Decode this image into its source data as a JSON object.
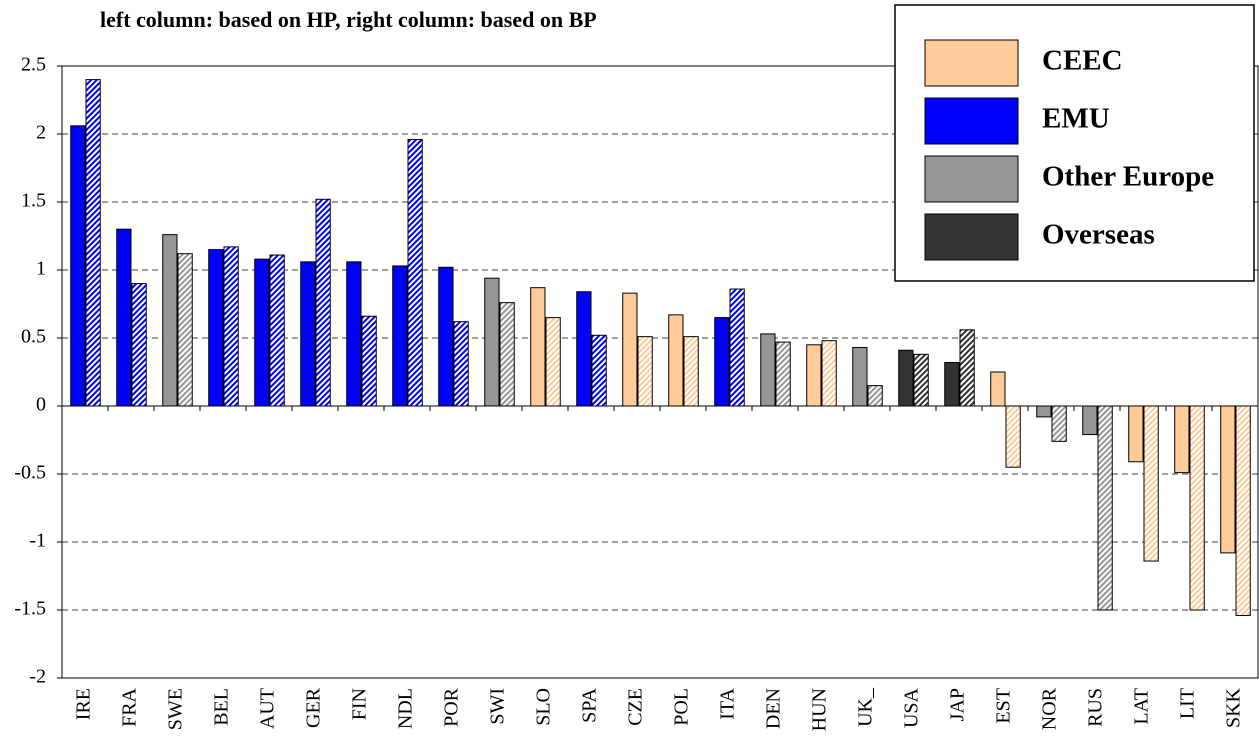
{
  "chart_data": {
    "type": "bar",
    "title": "left column: based on HP, right column: based on BP",
    "categories": [
      "IRE",
      "FRA",
      "SWE",
      "BEL",
      "AUT",
      "GER",
      "FIN",
      "NDL",
      "POR",
      "SWI",
      "SLO",
      "SPA",
      "CZE",
      "POL",
      "ITA",
      "DEN",
      "HUN",
      "UK_",
      "USA",
      "JAP",
      "EST",
      "NOR",
      "RUS",
      "LAT",
      "LIT",
      "SKK"
    ],
    "category_group": [
      "EMU",
      "EMU",
      "Other Europe",
      "EMU",
      "EMU",
      "EMU",
      "EMU",
      "EMU",
      "EMU",
      "Other Europe",
      "CEEC",
      "EMU",
      "CEEC",
      "CEEC",
      "EMU",
      "Other Europe",
      "CEEC",
      "Other Europe",
      "Overseas",
      "Overseas",
      "CEEC",
      "Other Europe",
      "Other Europe",
      "CEEC",
      "CEEC",
      "CEEC"
    ],
    "series": [
      {
        "values": [
          2.06,
          1.3,
          1.26,
          1.15,
          1.08,
          1.06,
          1.06,
          1.03,
          1.02,
          0.94,
          0.87,
          0.84,
          0.83,
          0.67,
          0.65,
          0.53,
          0.45,
          0.43,
          0.41,
          0.32,
          0.25,
          -0.08,
          -0.21,
          -0.41,
          -0.49,
          -1.08
        ]
      },
      {
        "values": [
          2.4,
          0.9,
          1.12,
          1.17,
          1.11,
          1.52,
          0.66,
          1.96,
          0.62,
          0.76,
          0.65,
          0.52,
          0.51,
          0.51,
          0.86,
          0.47,
          0.48,
          0.15,
          0.38,
          0.56,
          -0.45,
          -0.26,
          -1.5,
          -1.14,
          -1.5,
          -1.54
        ],
        "pattern": "hatched"
      }
    ],
    "legend": [
      {
        "name": "CEEC",
        "color": "#ffcc99"
      },
      {
        "name": "EMU",
        "color": "#0000ff"
      },
      {
        "name": "Other Europe",
        "color": "#969696"
      },
      {
        "name": "Overseas",
        "color": "#333333"
      }
    ],
    "legend_position": "top-right",
    "ylim": [
      -2,
      2.5
    ],
    "yticks": [
      -2,
      -1.5,
      -1,
      -0.5,
      0,
      0.5,
      1,
      1.5,
      2,
      2.5
    ],
    "grid": true
  }
}
